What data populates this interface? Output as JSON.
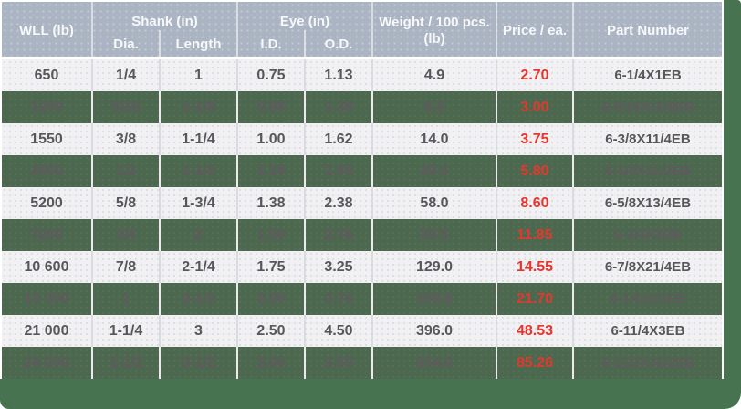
{
  "chart_data": {
    "type": "table",
    "title": "",
    "header": {
      "wll": "WLL (lb)",
      "shank_group": "Shank (in)",
      "dia": "Dia.",
      "length": "Length",
      "eye_group": "Eye (in)",
      "id": "I.D.",
      "od": "O.D.",
      "weight": "Weight / 100 pcs. (lb)",
      "price": "Price / ea.",
      "part": "Part Number"
    },
    "columns": [
      "WLL (lb)",
      "Shank Dia. (in)",
      "Shank Length (in)",
      "Eye I.D. (in)",
      "Eye O.D. (in)",
      "Weight / 100 pcs. (lb)",
      "Price / ea.",
      "Part Number"
    ],
    "rows": [
      [
        "650",
        "1/4",
        "1",
        "0.75",
        "1.13",
        "4.9",
        "2.70",
        "6-1/4X1EB"
      ],
      [
        "1200",
        "5/16",
        "1-1/8",
        "0.88",
        "1.38",
        "8.5",
        "3.00",
        "6-5/16X11/8EB"
      ],
      [
        "1550",
        "3/8",
        "1-1/4",
        "1.00",
        "1.62",
        "14.0",
        "3.75",
        "6-3/8X11/4EB"
      ],
      [
        "2600",
        "1/2",
        "1-1/2",
        "1.19",
        "1.95",
        "29.5",
        "5.80",
        "6-1/2X11/2EB"
      ],
      [
        "5200",
        "5/8",
        "1-3/4",
        "1.38",
        "2.38",
        "58.0",
        "8.60",
        "6-5/8X13/4EB"
      ],
      [
        "7200",
        "3/4",
        "2",
        "1.50",
        "2.76",
        "88.5",
        "11.85",
        "6-3/4X2EB"
      ],
      [
        "10 600",
        "7/8",
        "2-1/4",
        "1.75",
        "3.25",
        "129.0",
        "14.55",
        "6-7/8X21/4EB"
      ],
      [
        "13 300",
        "1",
        "2-1/2",
        "2.00",
        "3.76",
        "198.5",
        "21.70",
        "6-1X21/2EB"
      ],
      [
        "21 000",
        "1-1/4",
        "3",
        "2.50",
        "4.50",
        "396.0",
        "48.53",
        "6-11/4X3EB"
      ],
      [
        "24 000",
        "1-1/2",
        "3-1/2",
        "3.00",
        "5.50",
        "654.0",
        "85.26",
        "6-11/2X31/2EB"
      ]
    ],
    "layout": {
      "row_striping": "alternating light / green starting with light",
      "price_column_color": "#e8342b",
      "header_bg": "#abb4c3",
      "row_light_bg": "#f1f0f2",
      "row_green_bg": "#4c684e",
      "frame_green": "#487350"
    }
  }
}
